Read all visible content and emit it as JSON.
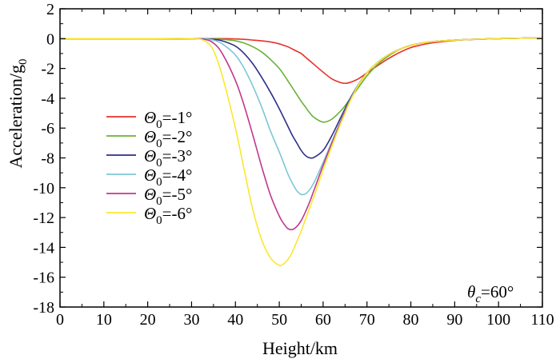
{
  "chart_data": {
    "type": "line",
    "title": "",
    "xlabel": "Height/km",
    "ylabel": "Acceleration/g",
    "ylabel_sub": "0",
    "xlim": [
      0,
      110
    ],
    "ylim": [
      -18,
      2
    ],
    "xticks": [
      0,
      10,
      20,
      30,
      40,
      50,
      60,
      70,
      80,
      90,
      100,
      110
    ],
    "yticks": [
      2,
      0,
      -2,
      -4,
      -6,
      -8,
      -10,
      -12,
      -14,
      -16,
      -18
    ],
    "grid": false,
    "legend_position": "left",
    "annotation": {
      "symbol": "θ",
      "sub": "c",
      "text": "=60°"
    },
    "x": [
      0,
      10,
      20,
      30,
      33,
      35,
      37,
      40,
      42,
      44,
      46,
      48,
      50,
      51,
      52,
      53,
      54,
      55,
      56,
      57,
      58,
      60,
      62,
      64,
      65,
      66,
      68,
      70,
      72,
      74,
      76,
      78,
      80,
      82,
      85,
      90,
      95,
      100,
      105,
      110
    ],
    "series": [
      {
        "name": "=-1°",
        "label_symbol": "Θ",
        "label_sub": "0",
        "color": "#e8312a",
        "values": [
          0,
          0,
          0,
          0,
          0,
          0,
          0,
          -0.02,
          -0.05,
          -0.1,
          -0.15,
          -0.22,
          -0.35,
          -0.45,
          -0.55,
          -0.7,
          -0.85,
          -1.0,
          -1.25,
          -1.5,
          -1.75,
          -2.25,
          -2.7,
          -2.95,
          -3.0,
          -2.95,
          -2.7,
          -2.3,
          -1.9,
          -1.5,
          -1.15,
          -0.85,
          -0.6,
          -0.45,
          -0.28,
          -0.12,
          -0.05,
          0.0,
          0.03,
          0.05
        ]
      },
      {
        "name": "=-2°",
        "label_symbol": "Θ",
        "label_sub": "0",
        "color": "#6ab234",
        "values": [
          0,
          0,
          0,
          0,
          0,
          -0.02,
          -0.05,
          -0.15,
          -0.3,
          -0.55,
          -0.9,
          -1.4,
          -2.0,
          -2.4,
          -2.85,
          -3.3,
          -3.75,
          -4.2,
          -4.6,
          -5.0,
          -5.3,
          -5.6,
          -5.4,
          -4.85,
          -4.5,
          -4.1,
          -3.3,
          -2.5,
          -1.85,
          -1.35,
          -0.95,
          -0.65,
          -0.45,
          -0.32,
          -0.2,
          -0.1,
          -0.04,
          0.0,
          0.03,
          0.05
        ]
      },
      {
        "name": "=-3°",
        "label_symbol": "Θ",
        "label_sub": "0",
        "color": "#2e2f88",
        "values": [
          0,
          0,
          0,
          0,
          -0.01,
          -0.05,
          -0.15,
          -0.5,
          -1.0,
          -1.7,
          -2.6,
          -3.6,
          -4.7,
          -5.3,
          -5.9,
          -6.5,
          -7.0,
          -7.5,
          -7.85,
          -8.0,
          -7.95,
          -7.5,
          -6.5,
          -5.3,
          -4.7,
          -4.1,
          -3.1,
          -2.3,
          -1.7,
          -1.25,
          -0.9,
          -0.65,
          -0.45,
          -0.32,
          -0.2,
          -0.1,
          -0.04,
          0.0,
          0.03,
          0.05
        ]
      },
      {
        "name": "=-4°",
        "label_symbol": "Θ",
        "label_sub": "0",
        "color": "#7dc7d6",
        "values": [
          0,
          0,
          0,
          0,
          -0.02,
          -0.1,
          -0.35,
          -1.1,
          -2.0,
          -3.2,
          -4.6,
          -6.2,
          -7.6,
          -8.35,
          -9.1,
          -9.7,
          -10.2,
          -10.45,
          -10.4,
          -10.1,
          -9.6,
          -8.3,
          -6.9,
          -5.5,
          -4.85,
          -4.2,
          -3.1,
          -2.3,
          -1.7,
          -1.25,
          -0.9,
          -0.65,
          -0.45,
          -0.32,
          -0.2,
          -0.1,
          -0.04,
          0.0,
          0.03,
          0.05
        ]
      },
      {
        "name": "=-5°",
        "label_symbol": "Θ",
        "label_sub": "0",
        "color": "#c2378e",
        "values": [
          0,
          0,
          0,
          0,
          -0.05,
          -0.3,
          -1.0,
          -2.8,
          -4.5,
          -6.5,
          -8.6,
          -10.5,
          -11.9,
          -12.4,
          -12.75,
          -12.8,
          -12.6,
          -12.2,
          -11.6,
          -10.9,
          -10.1,
          -8.5,
          -7.0,
          -5.6,
          -4.9,
          -4.25,
          -3.15,
          -2.3,
          -1.7,
          -1.25,
          -0.9,
          -0.65,
          -0.45,
          -0.32,
          -0.2,
          -0.1,
          -0.04,
          0.0,
          0.03,
          0.05
        ]
      },
      {
        "name": "=-6°",
        "label_symbol": "Θ",
        "label_sub": "0",
        "color": "#f9e82e",
        "values": [
          0,
          0,
          0,
          0,
          -0.15,
          -0.8,
          -2.5,
          -6.0,
          -8.8,
          -11.5,
          -13.5,
          -14.7,
          -15.2,
          -15.1,
          -14.8,
          -14.3,
          -13.6,
          -12.9,
          -12.1,
          -11.3,
          -10.5,
          -8.8,
          -7.2,
          -5.7,
          -5.0,
          -4.3,
          -3.15,
          -2.3,
          -1.7,
          -1.25,
          -0.9,
          -0.65,
          -0.45,
          -0.32,
          -0.2,
          -0.1,
          -0.04,
          0.0,
          0.03,
          0.05
        ]
      }
    ]
  }
}
